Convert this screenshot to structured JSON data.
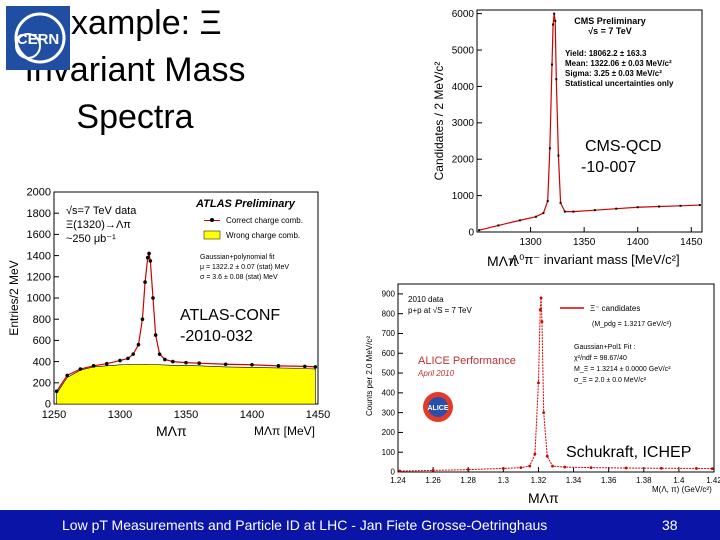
{
  "slide": {
    "title_lines": [
      "Example: Ξ",
      "Invariant Mass",
      "Spectra"
    ],
    "logo_text": "CERN",
    "footer_text": "Low pT Measurements and Particle ID at LHC - Jan Fiete Grosse-Oetringhaus",
    "page_number": "38"
  },
  "annotations": {
    "cms_ref_line1": "CMS-QCD",
    "cms_ref_line2": "-10-007",
    "atlas_ref_line1": "ATLAS-CONF",
    "atlas_ref_line2": "-2010-032",
    "alice_ref": "Schukraft, ICHEP",
    "mass_label_cms": "MΛπ",
    "mass_label_atlas": "MΛπ",
    "mass_label_alice": "MΛπ"
  },
  "chart_data": [
    {
      "id": "cms",
      "type": "line",
      "title": "CMS Preliminary",
      "subtitle": "√s = 7 TeV",
      "ylabel": "Candidates / 2 MeV/c²",
      "xlabel": "Λ⁰π⁻ invariant mass [MeV/c²]",
      "xlim": [
        1250,
        1460
      ],
      "ylim": [
        0,
        6100
      ],
      "xticks": [
        1300,
        1350,
        1400,
        1450
      ],
      "yticks": [
        0,
        1000,
        2000,
        3000,
        4000,
        5000,
        6000
      ],
      "fit_text": [
        "Yield: 18062.2 ± 163.3",
        "Mean: 1322.06 ± 0.03 MeV/c²",
        "Sigma: 3.25 ± 0.03 MeV/c²",
        "Statistical uncertainties only"
      ],
      "x": [
        1252,
        1270,
        1290,
        1305,
        1312,
        1316,
        1318,
        1320,
        1321,
        1322,
        1323,
        1324,
        1326,
        1328,
        1332,
        1340,
        1360,
        1380,
        1400,
        1420,
        1440,
        1458
      ],
      "y": [
        50,
        180,
        320,
        420,
        520,
        850,
        2300,
        4600,
        5700,
        6000,
        5800,
        4200,
        2100,
        800,
        560,
        560,
        600,
        640,
        680,
        700,
        720,
        740
      ]
    },
    {
      "id": "atlas",
      "type": "line",
      "title": "ATLAS Preliminary",
      "ylabel": "Entries/2 MeV",
      "xlabel": "MΛπ [MeV]",
      "xlim": [
        1250,
        1450
      ],
      "ylim": [
        0,
        2000
      ],
      "xticks": [
        1250,
        1300,
        1350,
        1400,
        1450
      ],
      "yticks": [
        0,
        200,
        400,
        600,
        800,
        1000,
        1200,
        1400,
        1600,
        1800,
        2000
      ],
      "text_lines": [
        "√s=7 TeV data",
        "Ξ(1320)→Λπ",
        "~250 μb⁻¹"
      ],
      "legend": [
        "Correct charge comb.",
        "Wrong charge comb."
      ],
      "fit_text": [
        "Gaussian+polynomial fit",
        "μ = 1322.2 ± 0.07 (stat) MeV",
        "σ = 3.6 ± 0.08 (stat) MeV"
      ],
      "series": [
        {
          "name": "Correct charge comb.",
          "x": [
            1252,
            1260,
            1270,
            1280,
            1290,
            1300,
            1306,
            1310,
            1314,
            1317,
            1319,
            1321,
            1322,
            1323,
            1325,
            1327,
            1330,
            1334,
            1340,
            1350,
            1360,
            1380,
            1400,
            1420,
            1440,
            1448
          ],
          "y": [
            120,
            270,
            330,
            360,
            380,
            410,
            430,
            470,
            560,
            800,
            1150,
            1380,
            1420,
            1350,
            1000,
            650,
            470,
            420,
            400,
            390,
            385,
            375,
            370,
            360,
            355,
            350
          ]
        },
        {
          "name": "Wrong charge comb.",
          "x": [
            1252,
            1260,
            1270,
            1280,
            1290,
            1300,
            1320,
            1340,
            1360,
            1380,
            1400,
            1420,
            1440,
            1448
          ],
          "y": [
            100,
            250,
            320,
            350,
            360,
            370,
            375,
            365,
            360,
            350,
            345,
            340,
            335,
            330
          ]
        }
      ]
    },
    {
      "id": "alice",
      "type": "line",
      "title": "ALICE Performance",
      "subtitle": "April 2010",
      "ylabel": "Counts per 2.0 MeV/c²",
      "xlabel": "M(Λ, π) (GeV/c²)",
      "xlim": [
        1.24,
        1.42
      ],
      "ylim": [
        0,
        950
      ],
      "xticks": [
        1.24,
        1.26,
        1.28,
        1.3,
        1.32,
        1.34,
        1.36,
        1.38,
        1.4,
        1.42
      ],
      "yticks": [
        0,
        100,
        200,
        300,
        400,
        500,
        600,
        700,
        800,
        900
      ],
      "text_lines": [
        "2010 data",
        "p+p at √S = 7 TeV"
      ],
      "legend": [
        "Ξ⁻ candidates",
        "(M_pdg = 1.3217 GeV/c²)"
      ],
      "fit_text": [
        "Gaussian+Pol1 Fit :",
        "χ²/ndf = 98.67/40",
        "M_Ξ = 1.3214 ± 0.0000 GeV/c²",
        "σ_Ξ = 2.0 ± 0.0 MeV/c²"
      ],
      "x": [
        1.241,
        1.26,
        1.28,
        1.3,
        1.31,
        1.315,
        1.318,
        1.32,
        1.321,
        1.3215,
        1.322,
        1.323,
        1.325,
        1.328,
        1.335,
        1.35,
        1.37,
        1.39,
        1.41,
        1.419
      ],
      "y": [
        5,
        8,
        12,
        18,
        22,
        30,
        90,
        450,
        820,
        880,
        760,
        300,
        80,
        30,
        25,
        22,
        20,
        19,
        18,
        17
      ]
    }
  ]
}
